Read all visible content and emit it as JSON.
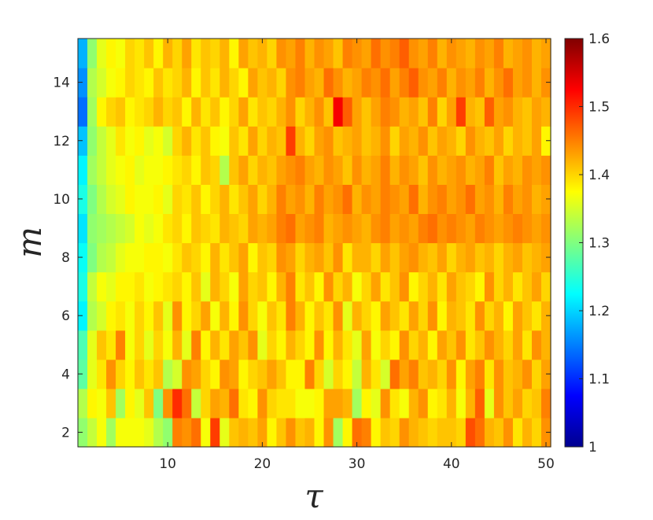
{
  "chart_data": {
    "type": "heatmap",
    "title": "",
    "xlabel": "τ",
    "ylabel": "m",
    "x": {
      "start": 1,
      "end": 50,
      "step": 1
    },
    "y": {
      "start": 2,
      "end": 15,
      "step": 1
    },
    "xlim": [
      0.5,
      50.5
    ],
    "ylim": [
      1.5,
      15.5
    ],
    "x_ticks": [
      10,
      20,
      30,
      40,
      50
    ],
    "y_ticks": [
      2,
      4,
      6,
      8,
      10,
      12,
      14
    ],
    "colorbar": {
      "colormap": "jet",
      "range": [
        1.0,
        1.6
      ],
      "ticks": [
        1,
        1.1,
        1.2,
        1.3,
        1.4,
        1.5,
        1.6
      ],
      "tick_labels": [
        "1",
        "1.1",
        "1.2",
        "1.3",
        "1.4",
        "1.5",
        "1.6"
      ]
    },
    "grid": false,
    "values": [
      [
        1.31,
        1.34,
        1.37,
        1.32,
        1.37,
        1.37,
        1.37,
        1.36,
        1.33,
        1.31,
        1.45,
        1.44,
        1.46,
        1.37,
        1.49,
        1.36,
        1.41,
        1.42,
        1.41,
        1.43,
        1.38,
        1.41,
        1.44,
        1.41,
        1.42,
        1.38,
        1.44,
        1.32,
        1.38,
        1.46,
        1.45,
        1.38,
        1.41,
        1.4,
        1.44,
        1.42,
        1.41,
        1.4,
        1.41,
        1.41,
        1.4,
        1.48,
        1.46,
        1.42,
        1.41,
        1.44,
        1.39,
        1.42,
        1.4,
        1.44
      ],
      [
        1.33,
        1.38,
        1.37,
        1.41,
        1.32,
        1.38,
        1.36,
        1.41,
        1.3,
        1.44,
        1.5,
        1.46,
        1.34,
        1.4,
        1.43,
        1.42,
        1.46,
        1.39,
        1.38,
        1.44,
        1.4,
        1.39,
        1.39,
        1.37,
        1.37,
        1.38,
        1.43,
        1.43,
        1.42,
        1.32,
        1.38,
        1.36,
        1.44,
        1.39,
        1.37,
        1.42,
        1.44,
        1.38,
        1.39,
        1.42,
        1.37,
        1.42,
        1.47,
        1.36,
        1.44,
        1.41,
        1.43,
        1.4,
        1.41,
        1.45
      ],
      [
        1.28,
        1.36,
        1.39,
        1.44,
        1.4,
        1.38,
        1.41,
        1.39,
        1.41,
        1.33,
        1.35,
        1.44,
        1.43,
        1.4,
        1.38,
        1.44,
        1.43,
        1.38,
        1.4,
        1.41,
        1.43,
        1.41,
        1.38,
        1.38,
        1.45,
        1.4,
        1.35,
        1.4,
        1.38,
        1.34,
        1.42,
        1.39,
        1.35,
        1.46,
        1.43,
        1.45,
        1.41,
        1.42,
        1.4,
        1.44,
        1.38,
        1.43,
        1.45,
        1.39,
        1.44,
        1.41,
        1.42,
        1.44,
        1.4,
        1.43
      ],
      [
        1.27,
        1.36,
        1.41,
        1.39,
        1.45,
        1.37,
        1.4,
        1.36,
        1.4,
        1.37,
        1.42,
        1.36,
        1.45,
        1.38,
        1.42,
        1.39,
        1.43,
        1.41,
        1.44,
        1.36,
        1.4,
        1.38,
        1.42,
        1.4,
        1.38,
        1.44,
        1.38,
        1.42,
        1.39,
        1.36,
        1.43,
        1.37,
        1.4,
        1.38,
        1.44,
        1.4,
        1.42,
        1.38,
        1.43,
        1.41,
        1.44,
        1.39,
        1.41,
        1.44,
        1.42,
        1.4,
        1.43,
        1.39,
        1.44,
        1.42
      ],
      [
        1.22,
        1.33,
        1.35,
        1.38,
        1.39,
        1.37,
        1.4,
        1.38,
        1.41,
        1.36,
        1.44,
        1.38,
        1.4,
        1.43,
        1.37,
        1.42,
        1.38,
        1.44,
        1.4,
        1.37,
        1.41,
        1.39,
        1.45,
        1.42,
        1.38,
        1.41,
        1.39,
        1.44,
        1.36,
        1.42,
        1.4,
        1.38,
        1.43,
        1.41,
        1.39,
        1.43,
        1.4,
        1.44,
        1.38,
        1.42,
        1.41,
        1.39,
        1.44,
        1.4,
        1.42,
        1.38,
        1.43,
        1.41,
        1.39,
        1.42
      ],
      [
        1.24,
        1.34,
        1.37,
        1.36,
        1.38,
        1.38,
        1.39,
        1.37,
        1.38,
        1.39,
        1.4,
        1.38,
        1.41,
        1.36,
        1.42,
        1.4,
        1.37,
        1.43,
        1.4,
        1.41,
        1.38,
        1.42,
        1.45,
        1.39,
        1.41,
        1.38,
        1.44,
        1.4,
        1.42,
        1.37,
        1.4,
        1.43,
        1.39,
        1.41,
        1.44,
        1.38,
        1.4,
        1.42,
        1.39,
        1.43,
        1.41,
        1.4,
        1.38,
        1.44,
        1.4,
        1.42,
        1.39,
        1.41,
        1.43,
        1.4
      ],
      [
        1.23,
        1.3,
        1.33,
        1.34,
        1.36,
        1.37,
        1.37,
        1.38,
        1.38,
        1.37,
        1.39,
        1.41,
        1.4,
        1.38,
        1.42,
        1.39,
        1.41,
        1.43,
        1.38,
        1.41,
        1.4,
        1.44,
        1.43,
        1.4,
        1.42,
        1.43,
        1.41,
        1.44,
        1.39,
        1.42,
        1.42,
        1.4,
        1.43,
        1.41,
        1.43,
        1.44,
        1.42,
        1.41,
        1.43,
        1.4,
        1.42,
        1.43,
        1.41,
        1.42,
        1.4,
        1.42,
        1.43,
        1.41,
        1.42,
        1.43
      ],
      [
        1.21,
        1.31,
        1.32,
        1.33,
        1.34,
        1.35,
        1.37,
        1.36,
        1.37,
        1.39,
        1.4,
        1.38,
        1.41,
        1.4,
        1.39,
        1.42,
        1.41,
        1.4,
        1.43,
        1.42,
        1.43,
        1.45,
        1.46,
        1.43,
        1.44,
        1.45,
        1.42,
        1.43,
        1.44,
        1.43,
        1.42,
        1.44,
        1.45,
        1.43,
        1.44,
        1.43,
        1.45,
        1.46,
        1.44,
        1.45,
        1.44,
        1.43,
        1.45,
        1.44,
        1.43,
        1.44,
        1.45,
        1.44,
        1.43,
        1.44
      ],
      [
        1.24,
        1.3,
        1.33,
        1.35,
        1.36,
        1.38,
        1.37,
        1.37,
        1.38,
        1.36,
        1.4,
        1.39,
        1.41,
        1.38,
        1.4,
        1.42,
        1.39,
        1.41,
        1.43,
        1.4,
        1.42,
        1.45,
        1.43,
        1.44,
        1.42,
        1.45,
        1.43,
        1.44,
        1.46,
        1.42,
        1.44,
        1.43,
        1.45,
        1.44,
        1.43,
        1.46,
        1.42,
        1.44,
        1.45,
        1.43,
        1.44,
        1.46,
        1.43,
        1.44,
        1.42,
        1.45,
        1.43,
        1.44,
        1.42,
        1.43
      ],
      [
        1.22,
        1.32,
        1.34,
        1.36,
        1.37,
        1.38,
        1.36,
        1.37,
        1.37,
        1.38,
        1.39,
        1.4,
        1.38,
        1.41,
        1.4,
        1.33,
        1.41,
        1.43,
        1.4,
        1.42,
        1.41,
        1.43,
        1.44,
        1.45,
        1.43,
        1.42,
        1.44,
        1.43,
        1.41,
        1.44,
        1.42,
        1.43,
        1.45,
        1.42,
        1.44,
        1.43,
        1.41,
        1.44,
        1.42,
        1.43,
        1.44,
        1.42,
        1.43,
        1.45,
        1.41,
        1.43,
        1.42,
        1.44,
        1.43,
        1.44
      ],
      [
        1.19,
        1.31,
        1.34,
        1.36,
        1.39,
        1.37,
        1.38,
        1.36,
        1.37,
        1.35,
        1.4,
        1.42,
        1.39,
        1.41,
        1.38,
        1.37,
        1.41,
        1.39,
        1.43,
        1.4,
        1.42,
        1.41,
        1.49,
        1.42,
        1.4,
        1.43,
        1.44,
        1.41,
        1.42,
        1.43,
        1.41,
        1.42,
        1.44,
        1.4,
        1.43,
        1.42,
        1.44,
        1.41,
        1.43,
        1.42,
        1.4,
        1.44,
        1.42,
        1.41,
        1.43,
        1.4,
        1.42,
        1.41,
        1.43,
        1.38
      ],
      [
        1.14,
        1.32,
        1.38,
        1.4,
        1.41,
        1.38,
        1.39,
        1.4,
        1.42,
        1.4,
        1.41,
        1.38,
        1.42,
        1.39,
        1.41,
        1.38,
        1.4,
        1.43,
        1.39,
        1.41,
        1.4,
        1.42,
        1.44,
        1.4,
        1.42,
        1.44,
        1.41,
        1.53,
        1.47,
        1.43,
        1.41,
        1.43,
        1.45,
        1.44,
        1.42,
        1.43,
        1.41,
        1.45,
        1.4,
        1.43,
        1.49,
        1.42,
        1.41,
        1.47,
        1.43,
        1.44,
        1.42,
        1.41,
        1.43,
        1.42
      ],
      [
        1.16,
        1.33,
        1.35,
        1.37,
        1.38,
        1.4,
        1.39,
        1.38,
        1.41,
        1.39,
        1.4,
        1.42,
        1.38,
        1.41,
        1.39,
        1.42,
        1.4,
        1.38,
        1.43,
        1.41,
        1.42,
        1.4,
        1.44,
        1.45,
        1.43,
        1.42,
        1.46,
        1.44,
        1.42,
        1.43,
        1.45,
        1.44,
        1.46,
        1.43,
        1.45,
        1.47,
        1.44,
        1.43,
        1.45,
        1.42,
        1.44,
        1.43,
        1.45,
        1.42,
        1.44,
        1.46,
        1.43,
        1.44,
        1.42,
        1.44
      ],
      [
        1.18,
        1.31,
        1.36,
        1.38,
        1.37,
        1.4,
        1.39,
        1.41,
        1.38,
        1.42,
        1.4,
        1.43,
        1.39,
        1.41,
        1.4,
        1.42,
        1.38,
        1.43,
        1.41,
        1.42,
        1.4,
        1.44,
        1.43,
        1.45,
        1.42,
        1.44,
        1.43,
        1.41,
        1.45,
        1.44,
        1.43,
        1.46,
        1.44,
        1.45,
        1.47,
        1.44,
        1.43,
        1.45,
        1.42,
        1.44,
        1.43,
        1.42,
        1.44,
        1.43,
        1.45,
        1.42,
        1.43,
        1.44,
        1.42,
        1.43
      ]
    ]
  }
}
